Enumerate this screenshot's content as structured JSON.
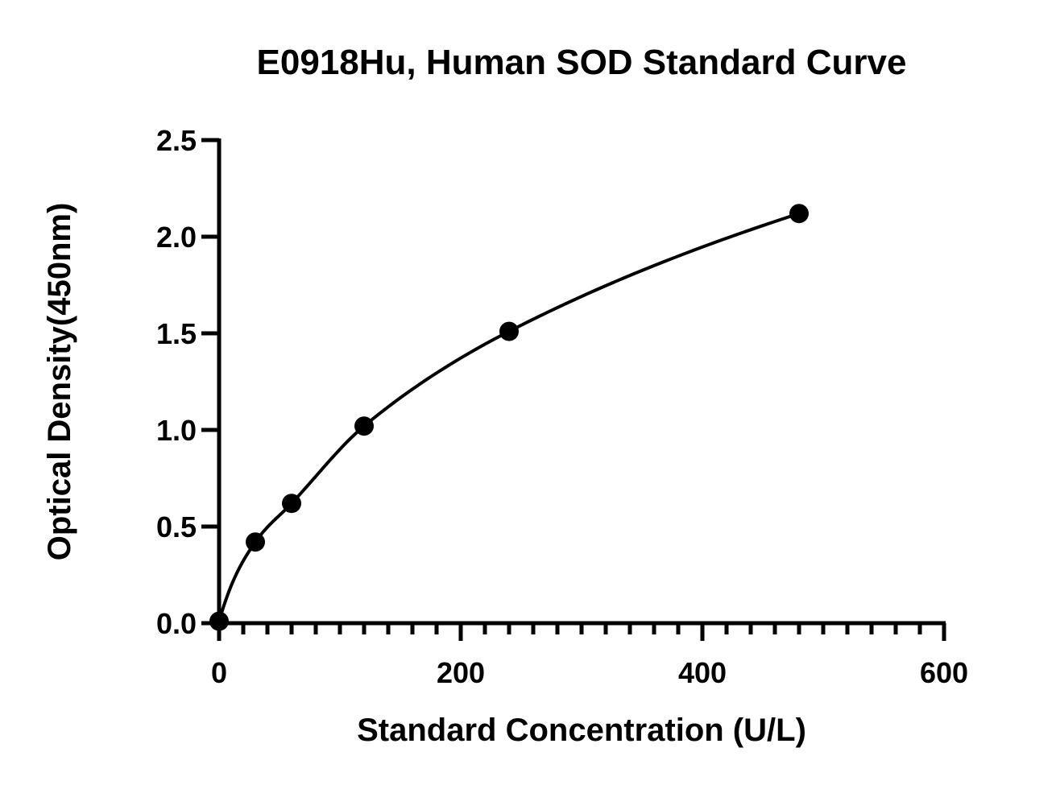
{
  "chart_data": {
    "type": "scatter",
    "title": "E0918Hu, Human SOD Standard Curve",
    "xlabel": "Standard Concentration (U/L)",
    "ylabel": "Optical Density(450nm)",
    "xlim": [
      0,
      600
    ],
    "ylim": [
      0,
      2.5
    ],
    "x_ticks": [
      "0",
      "200",
      "400",
      "600"
    ],
    "x_tick_values": [
      0,
      200,
      400,
      600
    ],
    "x_minor_step": 20,
    "y_ticks": [
      "0.0",
      "0.5",
      "1.0",
      "1.5",
      "2.0",
      "2.5"
    ],
    "y_tick_values": [
      0,
      0.5,
      1.0,
      1.5,
      2.0,
      2.5
    ],
    "grid": false,
    "legend": "none",
    "series": [
      {
        "x": [
          0,
          30,
          60,
          120,
          240,
          480
        ],
        "y": [
          0.01,
          0.42,
          0.62,
          1.02,
          1.51,
          2.12
        ],
        "fit_curve": true
      }
    ]
  }
}
